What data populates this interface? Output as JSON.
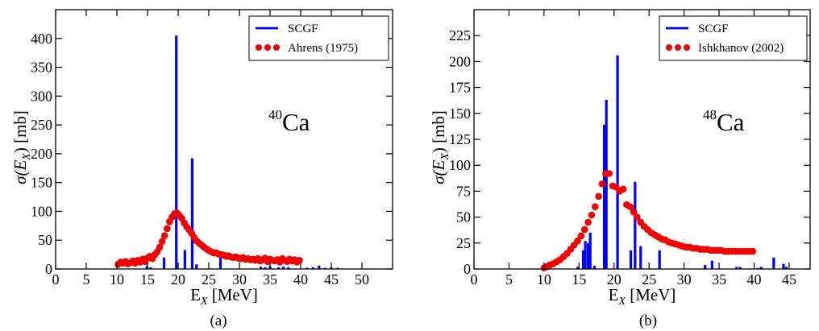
{
  "chart_data": [
    {
      "type": "bar",
      "panel_label": "(a)",
      "nucleus": {
        "mass": "40",
        "symbol": "Ca"
      },
      "xlabel": {
        "main": "E",
        "sub": "X",
        "unit": " [MeV]"
      },
      "ylabel": {
        "pre": "σ(E",
        "sub": "X",
        "post": ") [mb]"
      },
      "xlim": [
        0,
        55
      ],
      "ylim": [
        0,
        450
      ],
      "xticks": [
        0,
        5,
        10,
        15,
        20,
        25,
        30,
        35,
        40,
        45,
        50
      ],
      "yticks": [
        0,
        50,
        100,
        150,
        200,
        250,
        300,
        350,
        400
      ],
      "legend": {
        "position": "top-right",
        "entries": [
          {
            "label": "SCGF",
            "style": "line",
            "color": "#0000ee"
          },
          {
            "label": "Ahrens (1975)",
            "style": "dots",
            "color": "#ee0000"
          }
        ]
      },
      "series": [
        {
          "name": "SCGF",
          "kind": "bars",
          "color": "#0000ee",
          "x": [
            14.9,
            15.5,
            17.7,
            19.7,
            21.1,
            22.3,
            23.0,
            26.9,
            33.5,
            34.2,
            35.0,
            36.4,
            37.2,
            38.0,
            41.0,
            42.0,
            43.0,
            44.0,
            45.0,
            46.0
          ],
          "values": [
            5,
            3,
            20,
            405,
            33,
            192,
            8,
            20,
            4,
            3,
            5,
            3,
            4,
            3,
            2,
            3,
            6,
            2,
            3,
            2
          ]
        },
        {
          "name": "Ahrens (1975)",
          "kind": "points",
          "color": "#ee0000",
          "x": [
            10.2,
            10.6,
            11.0,
            11.4,
            11.8,
            12.2,
            12.6,
            13.0,
            13.4,
            13.8,
            14.2,
            14.6,
            15.0,
            15.4,
            15.8,
            16.2,
            16.6,
            17.0,
            17.4,
            17.8,
            18.2,
            18.6,
            19.0,
            19.4,
            19.8,
            20.2,
            20.6,
            21.0,
            21.4,
            21.8,
            22.2,
            22.6,
            23.0,
            23.4,
            23.8,
            24.2,
            24.6,
            25.0,
            25.4,
            25.8,
            26.2,
            26.6,
            27.0,
            27.4,
            27.8,
            28.2,
            28.6,
            29.0,
            29.4,
            29.8,
            30.2,
            30.6,
            31.0,
            31.4,
            31.8,
            32.2,
            32.6,
            33.0,
            33.4,
            33.8,
            34.2,
            34.6,
            35.0,
            35.4,
            35.8,
            36.2,
            36.6,
            37.0,
            37.4,
            37.8,
            38.2,
            38.6,
            39.0,
            39.4,
            39.8
          ],
          "values": [
            8,
            12,
            10,
            13,
            9,
            11,
            14,
            10,
            15,
            12,
            17,
            13,
            19,
            22,
            18,
            25,
            30,
            38,
            48,
            58,
            70,
            82,
            90,
            96,
            97,
            93,
            88,
            80,
            73,
            68,
            62,
            55,
            49,
            45,
            42,
            38,
            35,
            32,
            30,
            28,
            28,
            26,
            25,
            24,
            22,
            23,
            21,
            20,
            21,
            19,
            18,
            20,
            17,
            18,
            16,
            17,
            15,
            18,
            14,
            16,
            19,
            13,
            17,
            15,
            14,
            16,
            12,
            18,
            15,
            13,
            17,
            14,
            16,
            12,
            15
          ]
        }
      ]
    },
    {
      "type": "bar",
      "panel_label": "(b)",
      "nucleus": {
        "mass": "48",
        "symbol": "Ca"
      },
      "xlabel": {
        "main": "E",
        "sub": "X",
        "unit": " [MeV]"
      },
      "ylabel": {
        "pre": "σ(E",
        "sub": "X",
        "post": ") [mb]"
      },
      "xlim": [
        0,
        48
      ],
      "ylim": [
        0,
        250
      ],
      "xticks": [
        0,
        5,
        10,
        15,
        20,
        25,
        30,
        35,
        40,
        45
      ],
      "yticks": [
        0,
        25,
        50,
        75,
        100,
        125,
        150,
        175,
        200,
        225
      ],
      "legend": {
        "position": "top-right",
        "entries": [
          {
            "label": "SCGF",
            "style": "line",
            "color": "#0000ee"
          },
          {
            "label": "Ishkhanov (2002)",
            "style": "dots",
            "color": "#ee0000"
          }
        ]
      },
      "series": [
        {
          "name": "SCGF",
          "kind": "bars",
          "color": "#0000ee",
          "x": [
            15.6,
            15.9,
            16.3,
            16.6,
            18.6,
            18.9,
            20.5,
            22.4,
            23.0,
            23.8,
            26.5,
            33.0,
            34.0,
            37.5,
            38.0,
            42.8,
            44.2,
            44.6
          ],
          "values": [
            18,
            27,
            25,
            35,
            139,
            163,
            206,
            18,
            84,
            22,
            18,
            4,
            8,
            2,
            2,
            11,
            5,
            2
          ],
          "extra_small": [
            [
              14.8,
              2
            ],
            [
              17.2,
              3
            ],
            [
              40.5,
              1
            ],
            [
              41.0,
              2
            ]
          ]
        },
        {
          "name": "Ishkhanov (2002)",
          "kind": "points",
          "color": "#ee0000",
          "x": [
            10.0,
            10.3,
            10.6,
            10.9,
            11.3,
            11.8,
            12.3,
            12.8,
            13.3,
            13.8,
            14.3,
            14.8,
            15.3,
            15.8,
            16.3,
            16.8,
            17.3,
            17.8,
            18.3,
            18.8,
            19.3,
            19.8,
            20.3,
            20.8,
            21.3,
            21.8,
            22.3,
            22.8,
            23.3,
            23.8,
            24.3,
            24.8,
            25.3,
            25.8,
            26.3,
            26.8,
            27.3,
            27.8,
            28.3,
            28.8,
            29.3,
            29.8,
            30.3,
            30.8,
            31.3,
            31.8,
            32.3,
            32.8,
            33.3,
            33.8,
            34.3,
            34.8,
            35.3,
            35.8,
            36.3,
            36.8,
            37.3,
            37.8,
            38.3,
            38.8,
            39.3,
            39.8
          ],
          "values": [
            1,
            2,
            3,
            4,
            5,
            7,
            9,
            12,
            15,
            19,
            23,
            27,
            32,
            38,
            45,
            52,
            60,
            70,
            82,
            92,
            92,
            80,
            79,
            75,
            77,
            62,
            60,
            55,
            50,
            45,
            41,
            38,
            35,
            33,
            31,
            29,
            28,
            26,
            25,
            24,
            23,
            22,
            21,
            21,
            20,
            20,
            19,
            19,
            19,
            18,
            18,
            18,
            18,
            17,
            17,
            17,
            17,
            17,
            17,
            17,
            17,
            17
          ]
        }
      ]
    }
  ]
}
